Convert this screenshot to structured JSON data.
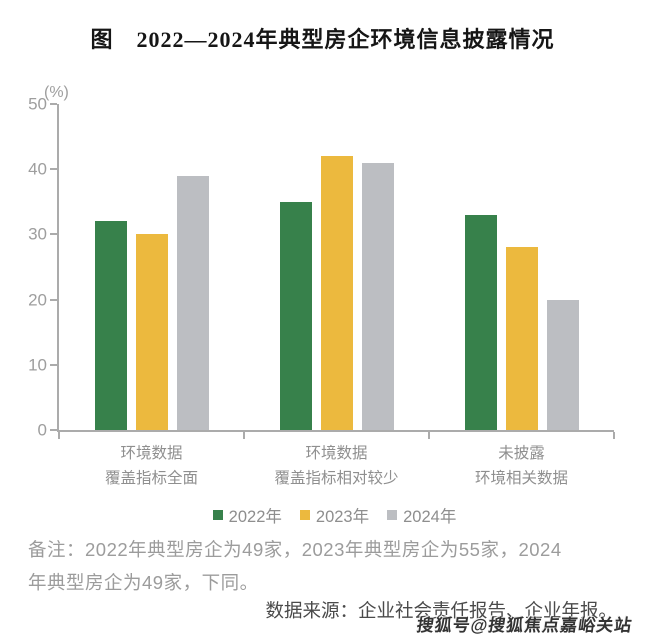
{
  "chart_data": {
    "type": "bar",
    "title": "图　2022—2024年典型房企环境信息披露情况",
    "xlabel": "",
    "ylabel": "(%)",
    "ylim": [
      0,
      50
    ],
    "yticks": [
      0,
      10,
      20,
      30,
      40,
      50
    ],
    "grid": false,
    "legend_position": "bottom-center",
    "categories": [
      "环境数据\n覆盖指标全面",
      "环境数据\n覆盖指标相对较少",
      "未披露\n环境相关数据"
    ],
    "series": [
      {
        "name": "2022年",
        "color": "#37814B",
        "values": [
          32,
          35,
          33
        ]
      },
      {
        "name": "2023年",
        "color": "#ECB93E",
        "values": [
          30,
          42,
          28
        ]
      },
      {
        "name": "2024年",
        "color": "#BCBEC2",
        "values": [
          39,
          41,
          20
        ]
      }
    ]
  },
  "notes": {
    "remark_lines": [
      "备注：2022年典型房企为49家，2023年典型房企为55家，2024",
      "年典型房企为49家，下同。"
    ],
    "source": "数据来源：企业社会责任报告、企业年报。",
    "watermark": "搜狐号@搜狐焦点嘉峪关站"
  }
}
